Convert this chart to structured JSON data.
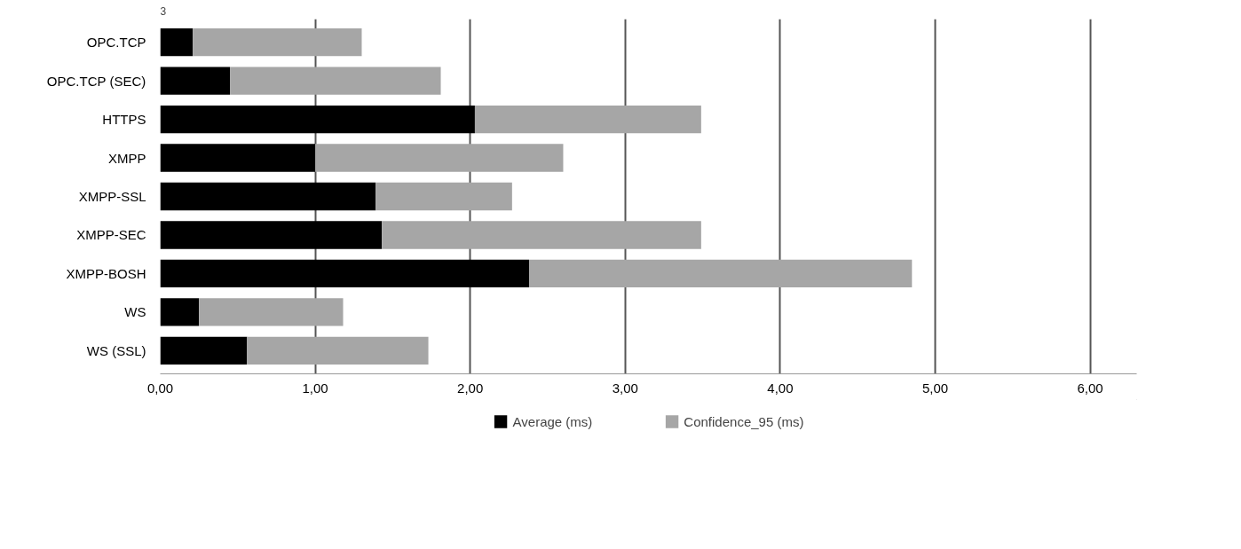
{
  "chart_data": {
    "type": "bar",
    "orientation": "horizontal",
    "stacked": true,
    "categories": [
      "OPC.TCP",
      "OPC.TCP (SEC)",
      "HTTPS",
      "XMPP",
      "XMPP-SSL",
      "XMPP-SEC",
      "XMPP-BOSH",
      "WS",
      "WS (SSL)"
    ],
    "series": [
      {
        "name": "Average (ms)",
        "color": "#000000",
        "values": [
          0.21,
          0.45,
          2.03,
          1.0,
          1.39,
          1.43,
          2.38,
          0.25,
          0.56
        ]
      },
      {
        "name": "Confidence_95 (ms)",
        "color": "#a6a6a6",
        "values": [
          1.09,
          1.36,
          1.46,
          1.6,
          0.88,
          2.06,
          2.47,
          0.93,
          1.17
        ]
      }
    ],
    "xlim": [
      0,
      6.3
    ],
    "xticks": [
      {
        "value": 0,
        "label": "0,00"
      },
      {
        "value": 1,
        "label": "1,00"
      },
      {
        "value": 2,
        "label": "2,00"
      },
      {
        "value": 3,
        "label": "3,00"
      },
      {
        "value": 4,
        "label": "4,00"
      },
      {
        "value": 5,
        "label": "5,00"
      },
      {
        "value": 6,
        "label": "6,00"
      }
    ],
    "grid": "x",
    "legend": "bottom",
    "annotations": [
      "3"
    ]
  }
}
